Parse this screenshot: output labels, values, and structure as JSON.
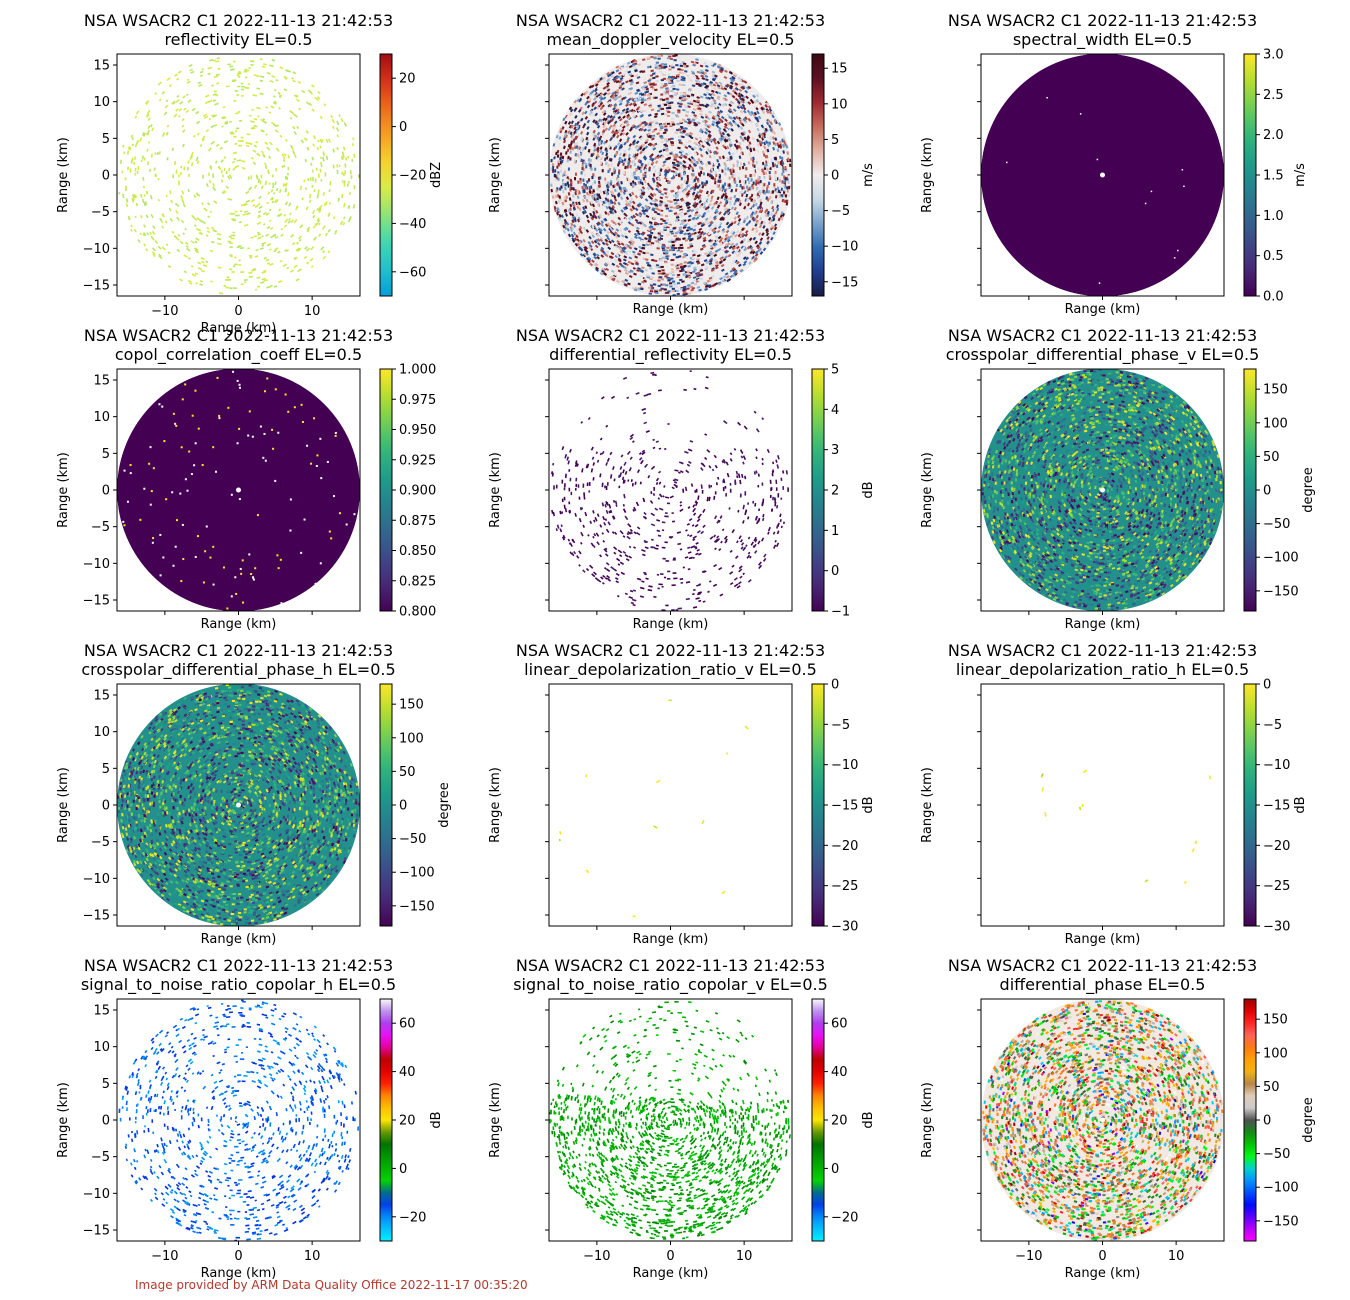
{
  "footer": "Image provided by ARM Data Quality Office 2022-11-17 00:35:20",
  "chart_data": [
    {
      "type": "heatmap",
      "title": "NSA WSACR2 C1 2022-11-13 21:42:53",
      "subtitle": "reflectivity  EL=0.5",
      "xlabel": "Range (km)",
      "ylabel": "Range (km)",
      "xlim": [
        -16.5,
        16.5
      ],
      "ylim": [
        -16.5,
        16.5
      ],
      "xticks": [
        -10,
        0,
        10
      ],
      "yticks": [
        -15,
        -10,
        -5,
        0,
        5,
        10,
        15
      ],
      "colorbar": {
        "label": "dBZ",
        "vmin": -70,
        "vmax": 30,
        "ticks": [
          -60,
          -40,
          -20,
          0,
          20
        ],
        "colormap": "pyart_HomeyerRainbow"
      },
      "field": {
        "pattern": "sparse-speckle",
        "density": 0.28,
        "dominant_value": -28,
        "spread": 4,
        "center_hint": -55
      },
      "radar_max_range_km": 16.5
    },
    {
      "type": "heatmap",
      "title": "NSA WSACR2 C1 2022-11-13 21:42:53",
      "subtitle": "mean_doppler_velocity  EL=0.5",
      "xlabel": "Range (km)",
      "ylabel": "Range (km)",
      "xlim": [
        -16.5,
        16.5
      ],
      "ylim": [
        -16.5,
        16.5
      ],
      "yticks": [
        -15,
        -10,
        -5,
        0,
        5,
        10,
        15
      ],
      "colorbar": {
        "label": "m/s",
        "vmin": -17,
        "vmax": 17,
        "ticks": [
          -15,
          -10,
          -5,
          0,
          5,
          10,
          15
        ],
        "colormap": "balance"
      },
      "field": {
        "pattern": "full-noise",
        "density": 1.0,
        "dominant_value": 0,
        "spread": 17
      },
      "radar_max_range_km": 16.5
    },
    {
      "type": "heatmap",
      "title": "NSA WSACR2 C1 2022-11-13 21:42:53",
      "subtitle": "spectral_width  EL=0.5",
      "xlabel": "Range (km)",
      "ylabel": "Range (km)",
      "xlim": [
        -16.5,
        16.5
      ],
      "ylim": [
        -16.5,
        16.5
      ],
      "yticks": [
        -15,
        -10,
        -5,
        0,
        5,
        10,
        15
      ],
      "colorbar": {
        "label": "m/s",
        "vmin": 0.0,
        "vmax": 3.0,
        "ticks": [
          0.0,
          0.5,
          1.0,
          1.5,
          2.0,
          2.5,
          3.0
        ],
        "tick_labels": [
          "0.0",
          "0.5",
          "1.0",
          "1.5",
          "2.0",
          "2.5",
          "3.0"
        ],
        "colormap": "viridis"
      },
      "field": {
        "pattern": "solid",
        "dominant_value": 0.0
      },
      "radar_max_range_km": 16.5
    },
    {
      "type": "heatmap",
      "title": "NSA WSACR2 C1 2022-11-13 21:42:53",
      "subtitle": "copol_correlation_coeff  EL=0.5",
      "xlabel": "Range (km)",
      "ylabel": "Range (km)",
      "xlim": [
        -16.5,
        16.5
      ],
      "ylim": [
        -16.5,
        16.5
      ],
      "yticks": [
        -15,
        -10,
        -5,
        0,
        5,
        10,
        15
      ],
      "colorbar": {
        "label": "",
        "vmin": 0.8,
        "vmax": 1.0,
        "ticks": [
          0.8,
          0.825,
          0.85,
          0.875,
          0.9,
          0.925,
          0.95,
          0.975,
          1.0
        ],
        "tick_labels": [
          "0.800",
          "0.825",
          "0.850",
          "0.875",
          "0.900",
          "0.925",
          "0.950",
          "0.975",
          "1.000"
        ],
        "colormap": "viridis"
      },
      "field": {
        "pattern": "solid-with-specks",
        "dominant_value": 0.8,
        "speck_value": 1.0
      },
      "radar_max_range_km": 16.5
    },
    {
      "type": "heatmap",
      "title": "NSA WSACR2 C1 2022-11-13 21:42:53",
      "subtitle": "differential_reflectivity  EL=0.5",
      "xlabel": "Range (km)",
      "ylabel": "Range (km)",
      "xlim": [
        -16.5,
        16.5
      ],
      "ylim": [
        -16.5,
        16.5
      ],
      "yticks": [
        -15,
        -10,
        -5,
        0,
        5,
        10,
        15
      ],
      "colorbar": {
        "label": "dB",
        "vmin": -1,
        "vmax": 5,
        "ticks": [
          -1,
          0,
          1,
          2,
          3,
          4,
          5
        ],
        "colormap": "viridis"
      },
      "field": {
        "pattern": "southern-patches",
        "density": 0.12,
        "dominant_value": -1,
        "spread": 0.5
      },
      "radar_max_range_km": 16.5
    },
    {
      "type": "heatmap",
      "title": "NSA WSACR2 C1 2022-11-13 21:42:53",
      "subtitle": "crosspolar_differential_phase_v  EL=0.5",
      "xlabel": "Range (km)",
      "ylabel": "Range (km)",
      "xlim": [
        -16.5,
        16.5
      ],
      "ylim": [
        -16.5,
        16.5
      ],
      "yticks": [
        -15,
        -10,
        -5,
        0,
        5,
        10,
        15
      ],
      "colorbar": {
        "label": "degree",
        "vmin": -180,
        "vmax": 180,
        "ticks": [
          -150,
          -100,
          -50,
          0,
          50,
          100,
          150
        ],
        "colormap": "viridis"
      },
      "field": {
        "pattern": "full-noise",
        "density": 1.0,
        "dominant_value": 0,
        "spread": 180
      },
      "radar_max_range_km": 16.5
    },
    {
      "type": "heatmap",
      "title": "NSA WSACR2 C1 2022-11-13 21:42:53",
      "subtitle": "crosspolar_differential_phase_h  EL=0.5",
      "xlabel": "Range (km)",
      "ylabel": "Range (km)",
      "xlim": [
        -16.5,
        16.5
      ],
      "ylim": [
        -16.5,
        16.5
      ],
      "yticks": [
        -15,
        -10,
        -5,
        0,
        5,
        10,
        15
      ],
      "colorbar": {
        "label": "degree",
        "vmin": -180,
        "vmax": 180,
        "ticks": [
          -150,
          -100,
          -50,
          0,
          50,
          100,
          150
        ],
        "colormap": "viridis"
      },
      "field": {
        "pattern": "full-noise",
        "density": 1.0,
        "dominant_value": 0,
        "spread": 180
      },
      "radar_max_range_km": 16.5
    },
    {
      "type": "heatmap",
      "title": "NSA WSACR2 C1 2022-11-13 21:42:53",
      "subtitle": "linear_depolarization_ratio_v  EL=0.5",
      "xlabel": "Range (km)",
      "ylabel": "Range (km)",
      "xlim": [
        -16.5,
        16.5
      ],
      "ylim": [
        -16.5,
        16.5
      ],
      "yticks": [
        -15,
        -10,
        -5,
        0,
        5,
        10,
        15
      ],
      "colorbar": {
        "label": "dB",
        "vmin": -30,
        "vmax": 0,
        "ticks": [
          -30,
          -25,
          -20,
          -15,
          -10,
          -5,
          0
        ],
        "colormap": "viridis"
      },
      "field": {
        "pattern": "very-sparse",
        "density": 0.004,
        "dominant_value": -1,
        "spread": 3
      },
      "radar_max_range_km": 16.5
    },
    {
      "type": "heatmap",
      "title": "NSA WSACR2 C1 2022-11-13 21:42:53",
      "subtitle": "linear_depolarization_ratio_h  EL=0.5",
      "xlabel": "Range (km)",
      "ylabel": "Range (km)",
      "xlim": [
        -16.5,
        16.5
      ],
      "ylim": [
        -16.5,
        16.5
      ],
      "yticks": [
        -15,
        -10,
        -5,
        0,
        5,
        10,
        15
      ],
      "colorbar": {
        "label": "dB",
        "vmin": -30,
        "vmax": 0,
        "ticks": [
          -30,
          -25,
          -20,
          -15,
          -10,
          -5,
          0
        ],
        "colormap": "viridis"
      },
      "field": {
        "pattern": "very-sparse",
        "density": 0.004,
        "dominant_value": -1,
        "spread": 3
      },
      "radar_max_range_km": 16.5
    },
    {
      "type": "heatmap",
      "title": "NSA WSACR2 C1 2022-11-13 21:42:53",
      "subtitle": "signal_to_noise_ratio_copolar_h  EL=0.5",
      "xlabel": "Range (km)",
      "ylabel": "Range (km)",
      "xlim": [
        -16.5,
        16.5
      ],
      "ylim": [
        -16.5,
        16.5
      ],
      "xticks": [
        -10,
        0,
        10
      ],
      "yticks": [
        -15,
        -10,
        -5,
        0,
        5,
        10,
        15
      ],
      "colorbar": {
        "label": "dB",
        "vmin": -30,
        "vmax": 70,
        "ticks": [
          -20,
          0,
          20,
          40,
          60
        ],
        "colormap": "pyart_NWSRef"
      },
      "field": {
        "pattern": "sparse-speckle",
        "density": 0.35,
        "dominant_value": -17,
        "spread": 5
      },
      "radar_max_range_km": 16.5
    },
    {
      "type": "heatmap",
      "title": "NSA WSACR2 C1 2022-11-13 21:42:53",
      "subtitle": "signal_to_noise_ratio_copolar_v  EL=0.5",
      "xlabel": "Range (km)",
      "ylabel": "Range (km)",
      "xlim": [
        -16.5,
        16.5
      ],
      "ylim": [
        -16.5,
        16.5
      ],
      "xticks": [
        -10,
        0,
        10
      ],
      "yticks": [
        -15,
        -10,
        -5,
        0,
        5,
        10,
        15
      ],
      "colorbar": {
        "label": "dB",
        "vmin": -30,
        "vmax": 70,
        "ticks": [
          -20,
          0,
          20,
          40,
          60
        ],
        "colormap": "pyart_NWSRef"
      },
      "field": {
        "pattern": "southern-bands",
        "density": 0.7,
        "dominant_value": 2,
        "spread": 6
      },
      "radar_max_range_km": 16.5
    },
    {
      "type": "heatmap",
      "title": "NSA WSACR2 C1 2022-11-13 21:42:53",
      "subtitle": "differential_phase  EL=0.5",
      "xlabel": "Range (km)",
      "ylabel": "Range (km)",
      "xlim": [
        -16.5,
        16.5
      ],
      "ylim": [
        -16.5,
        16.5
      ],
      "xticks": [
        -10,
        0,
        10
      ],
      "yticks": [
        -15,
        -10,
        -5,
        0,
        5,
        10,
        15
      ],
      "colorbar": {
        "label": "degree",
        "vmin": -180,
        "vmax": 180,
        "ticks": [
          -150,
          -100,
          -50,
          0,
          50,
          100,
          150
        ],
        "colormap": "pyart_Wild25"
      },
      "field": {
        "pattern": "full-noise-wild",
        "density": 1.0,
        "dominant_value": 30,
        "spread": 120
      },
      "radar_max_range_km": 16.5
    }
  ]
}
